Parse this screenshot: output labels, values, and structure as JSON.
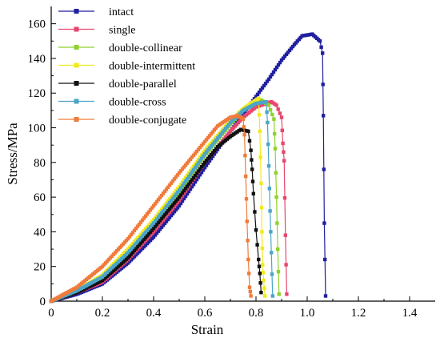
{
  "chart_data": {
    "type": "line",
    "xlabel": "Strain",
    "ylabel": "Stress/MPa",
    "xlim": [
      0,
      1.5
    ],
    "ylim": [
      0,
      170
    ],
    "x_ticks": [
      0,
      0.2,
      0.4,
      0.6,
      0.8,
      1.0,
      1.2,
      1.4
    ],
    "x_tick_labels": [
      "0",
      "0.2",
      "0.4",
      "0.6",
      "0.8",
      "1.0",
      "1.2",
      "1.4"
    ],
    "y_ticks": [
      0,
      20,
      40,
      60,
      80,
      100,
      120,
      140,
      160
    ],
    "y_tick_labels": [
      "0",
      "20",
      "40",
      "60",
      "80",
      "100",
      "120",
      "140",
      "160"
    ],
    "legend_position": "top-left",
    "grid": false,
    "series": [
      {
        "name": "intact",
        "color": "#1f1f9f",
        "points": [
          [
            0,
            0
          ],
          [
            0.1,
            4
          ],
          [
            0.2,
            10
          ],
          [
            0.3,
            22
          ],
          [
            0.4,
            37
          ],
          [
            0.5,
            55
          ],
          [
            0.6,
            77
          ],
          [
            0.7,
            98
          ],
          [
            0.8,
            118
          ],
          [
            0.85,
            128
          ],
          [
            0.9,
            139
          ],
          [
            0.95,
            148
          ],
          [
            0.98,
            153
          ],
          [
            1.02,
            154
          ],
          [
            1.05,
            150
          ],
          [
            1.06,
            143
          ],
          [
            1.063,
            107
          ],
          [
            1.067,
            45
          ],
          [
            1.072,
            3
          ]
        ]
      },
      {
        "name": "single",
        "color": "#e8466e",
        "points": [
          [
            0,
            0
          ],
          [
            0.1,
            5
          ],
          [
            0.2,
            11
          ],
          [
            0.3,
            24
          ],
          [
            0.4,
            40
          ],
          [
            0.5,
            58
          ],
          [
            0.6,
            80
          ],
          [
            0.7,
            98
          ],
          [
            0.75,
            106
          ],
          [
            0.8,
            112
          ],
          [
            0.86,
            115
          ],
          [
            0.88,
            113
          ],
          [
            0.9,
            106
          ],
          [
            0.905,
            91
          ],
          [
            0.91,
            81
          ],
          [
            0.915,
            38
          ],
          [
            0.92,
            4
          ]
        ]
      },
      {
        "name": "double-collinear",
        "color": "#8fd12c",
        "points": [
          [
            0,
            0
          ],
          [
            0.1,
            6
          ],
          [
            0.2,
            13
          ],
          [
            0.3,
            27
          ],
          [
            0.4,
            44
          ],
          [
            0.5,
            63
          ],
          [
            0.6,
            84
          ],
          [
            0.7,
            102
          ],
          [
            0.75,
            110
          ],
          [
            0.8,
            115
          ],
          [
            0.82,
            116
          ],
          [
            0.85,
            113
          ],
          [
            0.87,
            105
          ],
          [
            0.875,
            88
          ],
          [
            0.88,
            60
          ],
          [
            0.885,
            30
          ],
          [
            0.89,
            4
          ]
        ]
      },
      {
        "name": "double-intermittent",
        "color": "#f2ea1a",
        "points": [
          [
            0,
            0
          ],
          [
            0.1,
            6
          ],
          [
            0.2,
            15
          ],
          [
            0.3,
            30
          ],
          [
            0.4,
            47
          ],
          [
            0.5,
            66
          ],
          [
            0.6,
            87
          ],
          [
            0.7,
            104
          ],
          [
            0.75,
            111
          ],
          [
            0.8,
            116
          ],
          [
            0.81,
            117
          ],
          [
            0.815,
            98
          ],
          [
            0.82,
            68
          ],
          [
            0.823,
            40
          ],
          [
            0.826,
            21
          ],
          [
            0.83,
            12
          ],
          [
            0.835,
            3
          ]
        ]
      },
      {
        "name": "double-parallel",
        "color": "#111111",
        "points": [
          [
            0,
            0
          ],
          [
            0.1,
            5
          ],
          [
            0.2,
            12
          ],
          [
            0.3,
            25
          ],
          [
            0.4,
            42
          ],
          [
            0.5,
            60
          ],
          [
            0.6,
            80
          ],
          [
            0.65,
            89
          ],
          [
            0.7,
            95
          ],
          [
            0.74,
            99
          ],
          [
            0.77,
            98
          ],
          [
            0.78,
            87
          ],
          [
            0.785,
            76
          ],
          [
            0.79,
            62
          ],
          [
            0.8,
            41
          ],
          [
            0.81,
            24
          ],
          [
            0.815,
            16
          ],
          [
            0.82,
            5
          ]
        ]
      },
      {
        "name": "double-cross",
        "color": "#4ba5c8",
        "points": [
          [
            0,
            0
          ],
          [
            0.1,
            6
          ],
          [
            0.2,
            14
          ],
          [
            0.3,
            28
          ],
          [
            0.4,
            45
          ],
          [
            0.5,
            64
          ],
          [
            0.6,
            85
          ],
          [
            0.7,
            103
          ],
          [
            0.75,
            110
          ],
          [
            0.8,
            114
          ],
          [
            0.84,
            115
          ],
          [
            0.845,
            103
          ],
          [
            0.85,
            78
          ],
          [
            0.855,
            52
          ],
          [
            0.86,
            28
          ],
          [
            0.865,
            3
          ]
        ]
      },
      {
        "name": "double-conjugate",
        "color": "#f07b3a",
        "points": [
          [
            0,
            0
          ],
          [
            0.1,
            8
          ],
          [
            0.2,
            20
          ],
          [
            0.3,
            36
          ],
          [
            0.4,
            55
          ],
          [
            0.5,
            74
          ],
          [
            0.6,
            92
          ],
          [
            0.65,
            101
          ],
          [
            0.7,
            106
          ],
          [
            0.73,
            107
          ],
          [
            0.75,
            105
          ],
          [
            0.755,
            96
          ],
          [
            0.76,
            72
          ],
          [
            0.765,
            46
          ],
          [
            0.77,
            24
          ],
          [
            0.775,
            8
          ],
          [
            0.78,
            3
          ]
        ]
      }
    ]
  }
}
